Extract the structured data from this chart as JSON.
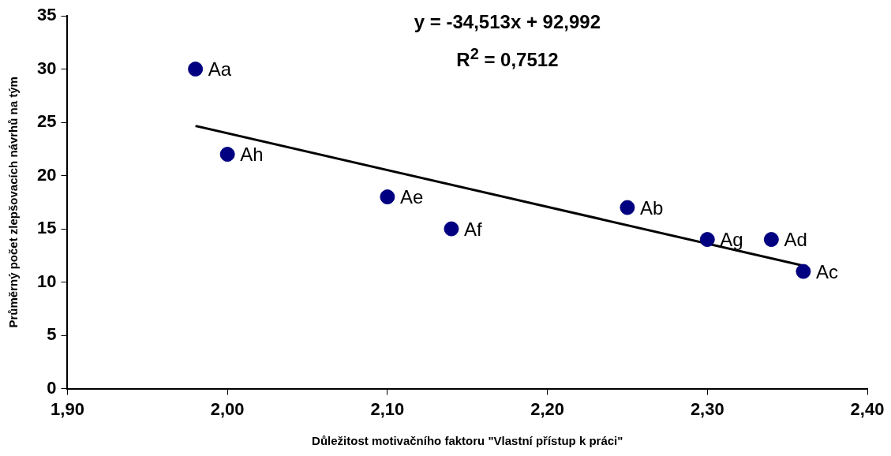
{
  "chart_data": {
    "type": "scatter",
    "xlabel": "Důležitost motivačního faktoru \"Vlastní přístup k práci\"",
    "ylabel": "Průměrný počet zlepšovacích návrhů na tým",
    "x": [
      1.98,
      2.0,
      2.1,
      2.14,
      2.25,
      2.3,
      2.34,
      2.36
    ],
    "series": [
      {
        "color": "#000080",
        "values": [
          30,
          22,
          18,
          15,
          17,
          14,
          14,
          11
        ]
      },
      {
        "type": "line",
        "marker": "none",
        "color": "#000000",
        "x": [
          1.98,
          2.36
        ],
        "values": [
          24.66,
          11.54
        ]
      }
    ],
    "xlim": [
      1.9,
      2.4
    ],
    "xticks": [
      {
        "value": 1.9,
        "label": "1,90"
      },
      {
        "value": 2.0,
        "label": "2,00"
      },
      {
        "value": 2.1,
        "label": "2,10"
      },
      {
        "value": 2.2,
        "label": "2,20"
      },
      {
        "value": 2.3,
        "label": "2,30"
      },
      {
        "value": 2.4,
        "label": "2,40"
      }
    ],
    "ylim": [
      0,
      35
    ],
    "yticks": [
      0,
      5,
      10,
      15,
      20,
      25,
      30,
      35
    ],
    "grid": false,
    "legend": false,
    "marker": "circle",
    "annotations": [
      "y = -34,513x + 92,992",
      "R$^{2}$ = 0,7512",
      {
        "text": "Aa",
        "x": 1.98,
        "y": 30
      },
      {
        "text": "Ah",
        "x": 2.0,
        "y": 22
      },
      {
        "text": "Ae",
        "x": 2.1,
        "y": 18
      },
      {
        "text": "Af",
        "x": 2.14,
        "y": 15
      },
      {
        "text": "Ab",
        "x": 2.25,
        "y": 17
      },
      {
        "text": "Ag",
        "x": 2.3,
        "y": 14
      },
      {
        "text": "Ad",
        "x": 2.34,
        "y": 14
      },
      {
        "text": "Ac",
        "x": 2.36,
        "y": 11
      }
    ]
  }
}
